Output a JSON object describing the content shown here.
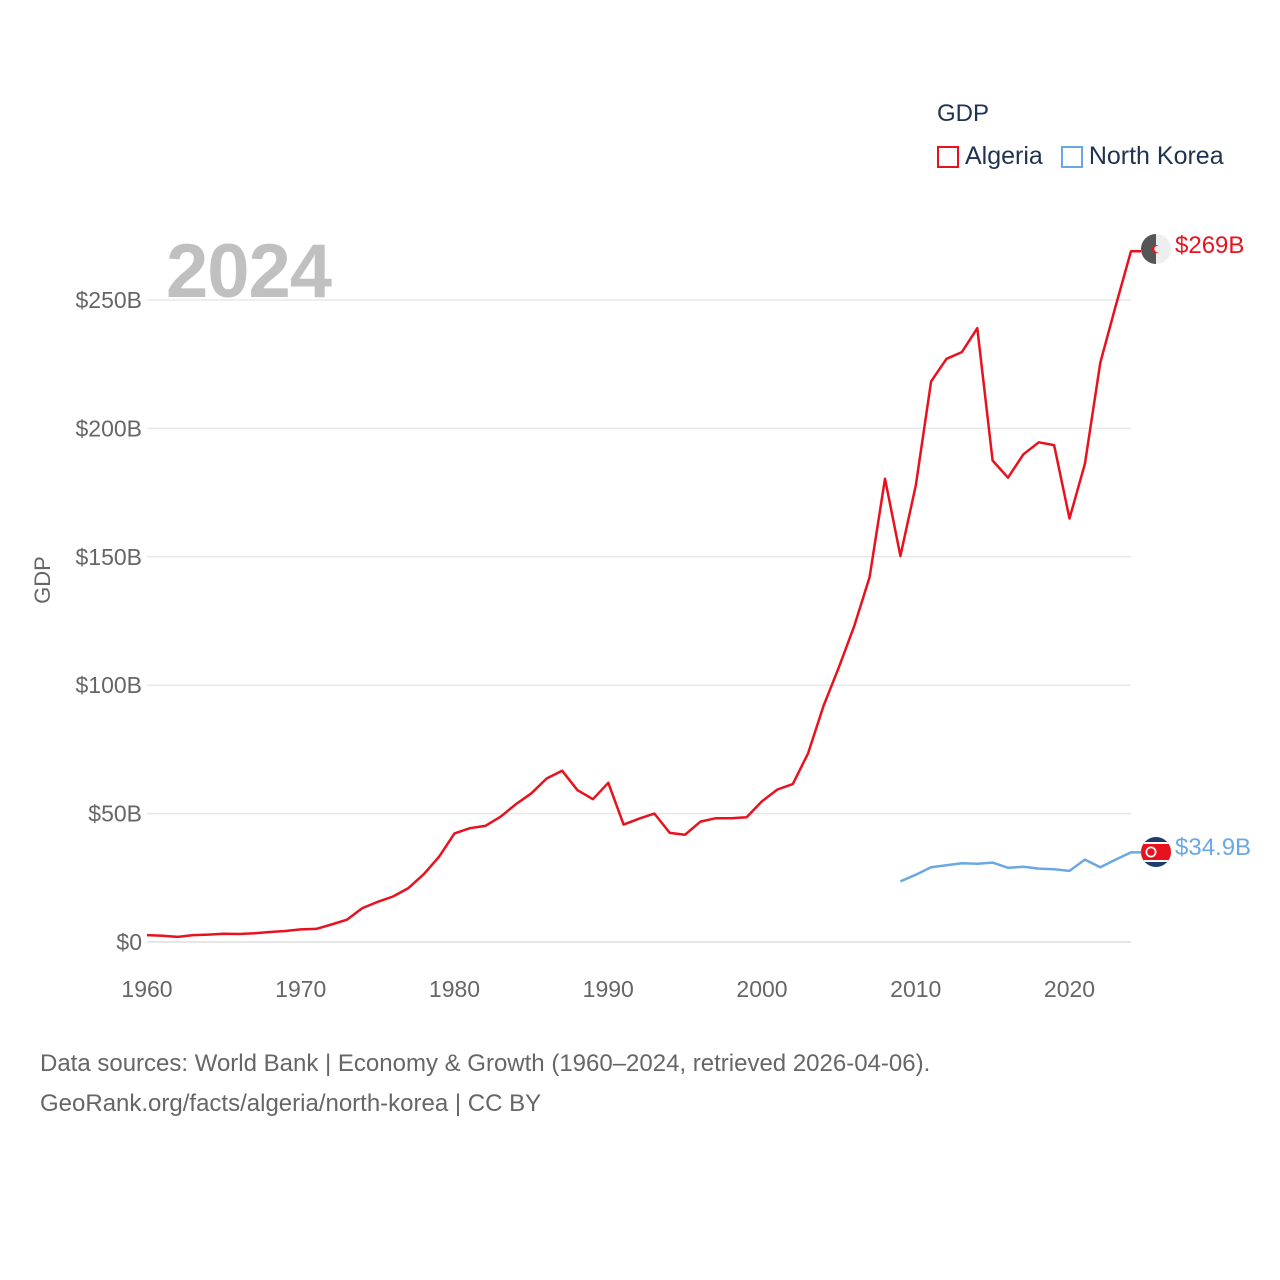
{
  "legend": {
    "title": "GDP",
    "items": [
      {
        "name": "Algeria",
        "color": "#e8121e"
      },
      {
        "name": "North Korea",
        "color": "#6aa8e4"
      }
    ]
  },
  "year_label": "2024",
  "end_labels": {
    "algeria": "$269B",
    "north_korea": "$34.9B"
  },
  "footer": {
    "line1": "Data sources: World Bank | Economy & Growth (1960–2024, retrieved 2026-04-06).",
    "line2": "GeoRank.org/facts/algeria/north-korea | CC BY"
  },
  "chart_data": {
    "type": "line",
    "title": "",
    "xlabel": "",
    "ylabel": "GDP",
    "xlim": [
      1960,
      2024
    ],
    "ylim": [
      0,
      250
    ],
    "x_ticks": [
      1960,
      1970,
      1980,
      1990,
      2000,
      2010,
      2020
    ],
    "y_ticks": [
      {
        "value": 0,
        "label": "$0"
      },
      {
        "value": 50,
        "label": "$50B"
      },
      {
        "value": 100,
        "label": "$100B"
      },
      {
        "value": 150,
        "label": "$150B"
      },
      {
        "value": 200,
        "label": "$200B"
      },
      {
        "value": 250,
        "label": "$250B"
      }
    ],
    "grid": true,
    "series": [
      {
        "name": "Algeria",
        "unit": "billion USD",
        "color": "#e8121e",
        "x": [
          1960,
          1961,
          1962,
          1963,
          1964,
          1965,
          1966,
          1967,
          1968,
          1969,
          1970,
          1971,
          1972,
          1973,
          1974,
          1975,
          1976,
          1977,
          1978,
          1979,
          1980,
          1981,
          1982,
          1983,
          1984,
          1985,
          1986,
          1987,
          1988,
          1989,
          1990,
          1991,
          1992,
          1993,
          1994,
          1995,
          1996,
          1997,
          1998,
          1999,
          2000,
          2001,
          2002,
          2003,
          2004,
          2005,
          2006,
          2007,
          2008,
          2009,
          2010,
          2011,
          2012,
          2013,
          2014,
          2015,
          2016,
          2017,
          2018,
          2019,
          2020,
          2021,
          2022,
          2023,
          2024
        ],
        "values": [
          2.7,
          2.4,
          2.0,
          2.7,
          2.9,
          3.2,
          3.1,
          3.4,
          3.9,
          4.3,
          4.9,
          5.1,
          6.8,
          8.7,
          13.2,
          15.6,
          17.7,
          21.0,
          26.4,
          33.2,
          42.3,
          44.3,
          45.2,
          48.8,
          53.7,
          57.9,
          63.7,
          66.7,
          59.1,
          55.6,
          62.0,
          45.7,
          48.0,
          50.0,
          42.5,
          41.8,
          46.9,
          48.2,
          48.2,
          48.6,
          54.8,
          59.4,
          61.5,
          73.5,
          91.9,
          107.0,
          123.1,
          142.1,
          180.4,
          150.3,
          177.8,
          218.3,
          227.1,
          229.7,
          239.0,
          187.5,
          180.8,
          189.9,
          194.6,
          193.5,
          164.9,
          186.2,
          225.6,
          247.6,
          269.0
        ]
      },
      {
        "name": "North Korea",
        "unit": "billion USD",
        "color": "#6aa8e4",
        "x": [
          2009,
          2010,
          2011,
          2012,
          2013,
          2014,
          2015,
          2016,
          2017,
          2018,
          2019,
          2020,
          2021,
          2022,
          2023,
          2024
        ],
        "values": [
          23.6,
          26.2,
          29.1,
          29.9,
          30.7,
          30.5,
          30.9,
          28.9,
          29.3,
          28.6,
          28.3,
          27.7,
          32.1,
          29.1,
          32.1,
          34.9
        ]
      }
    ]
  }
}
